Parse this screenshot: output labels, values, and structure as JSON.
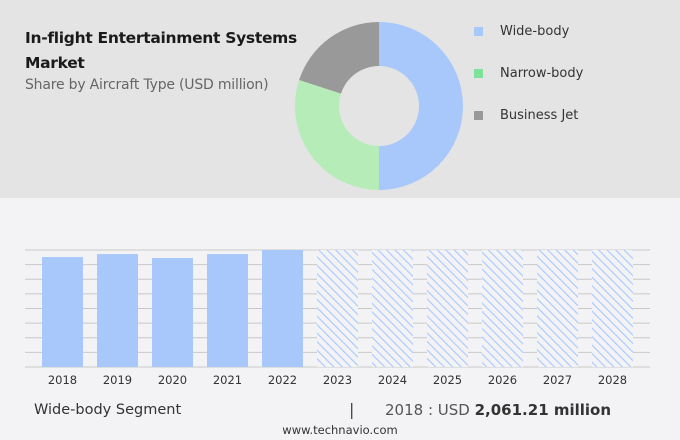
{
  "title": "In-flight Entertainment Systems Market",
  "subtitle": "Share by Aircraft Type (USD million)",
  "chart_data": [
    {
      "type": "pie",
      "donut": true,
      "categories": [
        "Wide-body",
        "Narrow-body",
        "Business Jet"
      ],
      "values": [
        50,
        30,
        20
      ],
      "colors": [
        "#a8c8fc",
        "#b6ecb8",
        "#999999"
      ],
      "legend_position": "right"
    },
    {
      "type": "bar",
      "categories": [
        "2018",
        "2019",
        "2020",
        "2021",
        "2022",
        "2023",
        "2024",
        "2025",
        "2026",
        "2027",
        "2028"
      ],
      "values": [
        2061.21,
        2117,
        2043,
        2117,
        2193,
        null,
        null,
        null,
        null,
        null,
        null
      ],
      "forecast_categories": [
        "2023",
        "2024",
        "2025",
        "2026",
        "2027",
        "2028"
      ],
      "color": "#a8c8fc",
      "grid": true,
      "ylim": [
        0,
        2193
      ]
    }
  ],
  "legend": [
    "Wide-body",
    "Narrow-body",
    "Business Jet"
  ],
  "footer": {
    "segment": "Wide-body Segment",
    "separator": "|",
    "year_label": "2018 : USD",
    "value": "2,061.21 million",
    "site": "www.technavio.com"
  }
}
